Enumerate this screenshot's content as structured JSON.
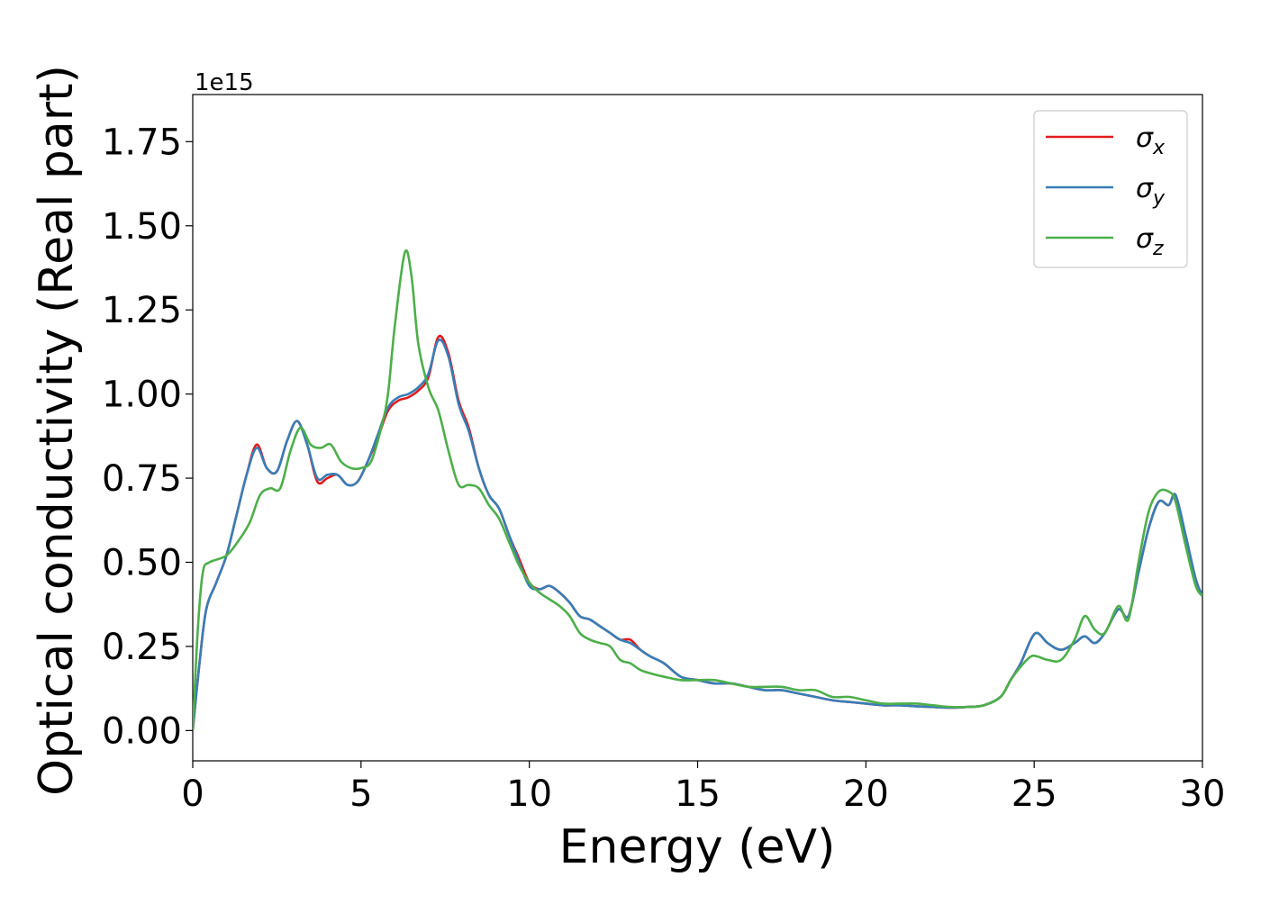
{
  "chart_data": {
    "type": "line",
    "xlabel": "Energy (eV)",
    "ylabel": "Optical conductivity (Real part)",
    "y_offset_label": "1e15",
    "xlim": [
      0,
      30
    ],
    "ylim": [
      -0.09,
      1.89
    ],
    "xticks": [
      0,
      5,
      10,
      15,
      20,
      25,
      30
    ],
    "xtick_labels": [
      "0",
      "5",
      "10",
      "15",
      "20",
      "25",
      "30"
    ],
    "yticks": [
      0.0,
      0.25,
      0.5,
      0.75,
      1.0,
      1.25,
      1.5,
      1.75
    ],
    "ytick_labels": [
      "0.00",
      "0.25",
      "0.50",
      "0.75",
      "1.00",
      "1.25",
      "1.50",
      "1.75"
    ],
    "grid": false,
    "legend_position": "top-right",
    "series": [
      {
        "name": "σx",
        "label_base": "σ",
        "label_sub": "x",
        "color": "#e41a1c",
        "points": [
          [
            0,
            0
          ],
          [
            0.2,
            0.2
          ],
          [
            0.4,
            0.36
          ],
          [
            0.7,
            0.44
          ],
          [
            1.0,
            0.52
          ],
          [
            1.3,
            0.64
          ],
          [
            1.6,
            0.76
          ],
          [
            1.9,
            0.85
          ],
          [
            2.2,
            0.78
          ],
          [
            2.5,
            0.77
          ],
          [
            2.8,
            0.86
          ],
          [
            3.1,
            0.92
          ],
          [
            3.4,
            0.85
          ],
          [
            3.7,
            0.74
          ],
          [
            4.0,
            0.75
          ],
          [
            4.3,
            0.76
          ],
          [
            4.6,
            0.73
          ],
          [
            4.9,
            0.74
          ],
          [
            5.2,
            0.8
          ],
          [
            5.5,
            0.87
          ],
          [
            5.8,
            0.95
          ],
          [
            6.1,
            0.98
          ],
          [
            6.4,
            0.99
          ],
          [
            6.7,
            1.01
          ],
          [
            7.0,
            1.05
          ],
          [
            7.3,
            1.17
          ],
          [
            7.6,
            1.12
          ],
          [
            7.9,
            0.98
          ],
          [
            8.2,
            0.9
          ],
          [
            8.5,
            0.78
          ],
          [
            8.8,
            0.7
          ],
          [
            9.1,
            0.66
          ],
          [
            9.4,
            0.58
          ],
          [
            9.7,
            0.51
          ],
          [
            10.0,
            0.44
          ],
          [
            10.3,
            0.42
          ],
          [
            10.6,
            0.43
          ],
          [
            10.9,
            0.41
          ],
          [
            11.2,
            0.38
          ],
          [
            11.5,
            0.34
          ],
          [
            11.8,
            0.33
          ],
          [
            12.1,
            0.31
          ],
          [
            12.4,
            0.29
          ],
          [
            12.7,
            0.27
          ],
          [
            13.0,
            0.27
          ],
          [
            13.3,
            0.24
          ],
          [
            13.6,
            0.22
          ],
          [
            14.0,
            0.2
          ],
          [
            14.5,
            0.16
          ],
          [
            15.0,
            0.15
          ],
          [
            15.5,
            0.14
          ],
          [
            16.0,
            0.14
          ],
          [
            16.5,
            0.13
          ],
          [
            17.0,
            0.12
          ],
          [
            17.5,
            0.12
          ],
          [
            18.0,
            0.11
          ],
          [
            18.5,
            0.1
          ],
          [
            19.0,
            0.09
          ],
          [
            19.5,
            0.085
          ],
          [
            20.0,
            0.08
          ],
          [
            20.5,
            0.075
          ],
          [
            21.0,
            0.075
          ],
          [
            21.5,
            0.072
          ],
          [
            22.0,
            0.07
          ],
          [
            22.5,
            0.068
          ],
          [
            23.0,
            0.07
          ],
          [
            23.5,
            0.075
          ],
          [
            24.0,
            0.1
          ],
          [
            24.3,
            0.15
          ],
          [
            24.6,
            0.2
          ],
          [
            24.9,
            0.27
          ],
          [
            25.1,
            0.29
          ],
          [
            25.4,
            0.26
          ],
          [
            25.8,
            0.24
          ],
          [
            26.2,
            0.26
          ],
          [
            26.5,
            0.28
          ],
          [
            26.8,
            0.26
          ],
          [
            27.1,
            0.29
          ],
          [
            27.5,
            0.36
          ],
          [
            27.8,
            0.34
          ],
          [
            28.1,
            0.47
          ],
          [
            28.4,
            0.6
          ],
          [
            28.7,
            0.68
          ],
          [
            29.0,
            0.67
          ],
          [
            29.2,
            0.7
          ],
          [
            29.5,
            0.58
          ],
          [
            29.8,
            0.45
          ],
          [
            30.0,
            0.4
          ]
        ]
      },
      {
        "name": "σy",
        "label_base": "σ",
        "label_sub": "y",
        "color": "#377eb8",
        "points": [
          [
            0,
            0
          ],
          [
            0.2,
            0.2
          ],
          [
            0.4,
            0.36
          ],
          [
            0.7,
            0.44
          ],
          [
            1.0,
            0.52
          ],
          [
            1.3,
            0.64
          ],
          [
            1.6,
            0.76
          ],
          [
            1.9,
            0.84
          ],
          [
            2.2,
            0.78
          ],
          [
            2.5,
            0.77
          ],
          [
            2.8,
            0.86
          ],
          [
            3.1,
            0.92
          ],
          [
            3.4,
            0.85
          ],
          [
            3.7,
            0.75
          ],
          [
            4.0,
            0.76
          ],
          [
            4.3,
            0.76
          ],
          [
            4.6,
            0.73
          ],
          [
            4.9,
            0.74
          ],
          [
            5.2,
            0.8
          ],
          [
            5.5,
            0.88
          ],
          [
            5.8,
            0.96
          ],
          [
            6.1,
            0.99
          ],
          [
            6.4,
            1.0
          ],
          [
            6.7,
            1.02
          ],
          [
            7.0,
            1.06
          ],
          [
            7.3,
            1.16
          ],
          [
            7.6,
            1.11
          ],
          [
            7.9,
            0.97
          ],
          [
            8.2,
            0.89
          ],
          [
            8.5,
            0.78
          ],
          [
            8.8,
            0.7
          ],
          [
            9.1,
            0.66
          ],
          [
            9.4,
            0.58
          ],
          [
            9.7,
            0.5
          ],
          [
            10.0,
            0.43
          ],
          [
            10.3,
            0.42
          ],
          [
            10.6,
            0.43
          ],
          [
            10.9,
            0.41
          ],
          [
            11.2,
            0.38
          ],
          [
            11.5,
            0.34
          ],
          [
            11.8,
            0.33
          ],
          [
            12.1,
            0.31
          ],
          [
            12.4,
            0.29
          ],
          [
            12.7,
            0.27
          ],
          [
            13.0,
            0.26
          ],
          [
            13.3,
            0.24
          ],
          [
            13.6,
            0.22
          ],
          [
            14.0,
            0.2
          ],
          [
            14.5,
            0.16
          ],
          [
            15.0,
            0.15
          ],
          [
            15.5,
            0.14
          ],
          [
            16.0,
            0.14
          ],
          [
            16.5,
            0.13
          ],
          [
            17.0,
            0.12
          ],
          [
            17.5,
            0.12
          ],
          [
            18.0,
            0.11
          ],
          [
            18.5,
            0.1
          ],
          [
            19.0,
            0.09
          ],
          [
            19.5,
            0.085
          ],
          [
            20.0,
            0.08
          ],
          [
            20.5,
            0.075
          ],
          [
            21.0,
            0.075
          ],
          [
            21.5,
            0.072
          ],
          [
            22.0,
            0.07
          ],
          [
            22.5,
            0.068
          ],
          [
            23.0,
            0.07
          ],
          [
            23.5,
            0.075
          ],
          [
            24.0,
            0.1
          ],
          [
            24.3,
            0.15
          ],
          [
            24.6,
            0.2
          ],
          [
            24.9,
            0.27
          ],
          [
            25.1,
            0.29
          ],
          [
            25.4,
            0.26
          ],
          [
            25.8,
            0.24
          ],
          [
            26.2,
            0.26
          ],
          [
            26.5,
            0.28
          ],
          [
            26.8,
            0.26
          ],
          [
            27.1,
            0.29
          ],
          [
            27.5,
            0.36
          ],
          [
            27.8,
            0.34
          ],
          [
            28.1,
            0.47
          ],
          [
            28.4,
            0.6
          ],
          [
            28.7,
            0.68
          ],
          [
            29.0,
            0.67
          ],
          [
            29.2,
            0.7
          ],
          [
            29.5,
            0.58
          ],
          [
            29.8,
            0.45
          ],
          [
            30.0,
            0.4
          ]
        ]
      },
      {
        "name": "σz",
        "label_base": "σ",
        "label_sub": "z",
        "color": "#4daf4a",
        "points": [
          [
            0,
            0
          ],
          [
            0.15,
            0.3
          ],
          [
            0.3,
            0.47
          ],
          [
            0.5,
            0.5
          ],
          [
            1.0,
            0.52
          ],
          [
            1.4,
            0.57
          ],
          [
            1.7,
            0.62
          ],
          [
            2.0,
            0.7
          ],
          [
            2.3,
            0.72
          ],
          [
            2.6,
            0.72
          ],
          [
            2.9,
            0.83
          ],
          [
            3.2,
            0.9
          ],
          [
            3.5,
            0.85
          ],
          [
            3.8,
            0.84
          ],
          [
            4.1,
            0.85
          ],
          [
            4.4,
            0.8
          ],
          [
            4.7,
            0.78
          ],
          [
            5.0,
            0.78
          ],
          [
            5.3,
            0.8
          ],
          [
            5.6,
            0.9
          ],
          [
            5.8,
            1.0
          ],
          [
            6.0,
            1.2
          ],
          [
            6.3,
            1.42
          ],
          [
            6.5,
            1.35
          ],
          [
            6.7,
            1.15
          ],
          [
            7.0,
            1.02
          ],
          [
            7.3,
            0.95
          ],
          [
            7.6,
            0.83
          ],
          [
            7.9,
            0.73
          ],
          [
            8.2,
            0.73
          ],
          [
            8.5,
            0.72
          ],
          [
            8.8,
            0.67
          ],
          [
            9.1,
            0.63
          ],
          [
            9.4,
            0.56
          ],
          [
            9.7,
            0.49
          ],
          [
            10.0,
            0.44
          ],
          [
            10.3,
            0.41
          ],
          [
            10.6,
            0.39
          ],
          [
            10.9,
            0.37
          ],
          [
            11.2,
            0.34
          ],
          [
            11.5,
            0.29
          ],
          [
            11.8,
            0.27
          ],
          [
            12.1,
            0.26
          ],
          [
            12.4,
            0.25
          ],
          [
            12.7,
            0.21
          ],
          [
            13.0,
            0.2
          ],
          [
            13.3,
            0.18
          ],
          [
            13.6,
            0.17
          ],
          [
            14.0,
            0.16
          ],
          [
            14.5,
            0.15
          ],
          [
            15.0,
            0.15
          ],
          [
            15.5,
            0.15
          ],
          [
            16.0,
            0.14
          ],
          [
            16.5,
            0.13
          ],
          [
            17.0,
            0.13
          ],
          [
            17.5,
            0.13
          ],
          [
            18.0,
            0.12
          ],
          [
            18.5,
            0.12
          ],
          [
            19.0,
            0.1
          ],
          [
            19.5,
            0.1
          ],
          [
            20.0,
            0.09
          ],
          [
            20.5,
            0.08
          ],
          [
            21.0,
            0.08
          ],
          [
            21.5,
            0.08
          ],
          [
            22.0,
            0.075
          ],
          [
            22.5,
            0.07
          ],
          [
            23.0,
            0.07
          ],
          [
            23.5,
            0.075
          ],
          [
            24.0,
            0.1
          ],
          [
            24.3,
            0.15
          ],
          [
            24.6,
            0.19
          ],
          [
            24.9,
            0.22
          ],
          [
            25.1,
            0.22
          ],
          [
            25.4,
            0.21
          ],
          [
            25.8,
            0.21
          ],
          [
            26.2,
            0.27
          ],
          [
            26.5,
            0.34
          ],
          [
            26.8,
            0.3
          ],
          [
            27.1,
            0.29
          ],
          [
            27.5,
            0.37
          ],
          [
            27.8,
            0.33
          ],
          [
            28.1,
            0.5
          ],
          [
            28.4,
            0.65
          ],
          [
            28.7,
            0.71
          ],
          [
            29.0,
            0.71
          ],
          [
            29.2,
            0.68
          ],
          [
            29.5,
            0.55
          ],
          [
            29.8,
            0.43
          ],
          [
            30.0,
            0.4
          ]
        ]
      }
    ]
  }
}
